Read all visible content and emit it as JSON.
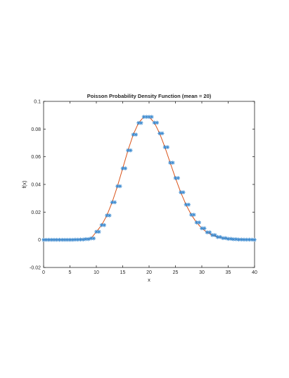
{
  "chart_data": {
    "type": "scatter",
    "title": "Poisson Probability Density Function (mean = 20)",
    "xlabel": "x",
    "ylabel": "f(x)",
    "xlim": [
      0,
      40
    ],
    "ylim": [
      -0.02,
      0.1
    ],
    "grid": false,
    "legend": "none",
    "x_ticks": [
      {
        "value": 0,
        "label": "0"
      },
      {
        "value": 5,
        "label": "5"
      },
      {
        "value": 10,
        "label": "10"
      },
      {
        "value": 15,
        "label": "15"
      },
      {
        "value": 20,
        "label": "20"
      },
      {
        "value": 25,
        "label": "25"
      },
      {
        "value": 30,
        "label": "30"
      },
      {
        "value": 35,
        "label": "35"
      },
      {
        "value": 40,
        "label": "40"
      }
    ],
    "y_ticks": [
      {
        "value": -0.02,
        "label": "-0.02"
      },
      {
        "value": 0,
        "label": "0"
      },
      {
        "value": 0.02,
        "label": "0.02"
      },
      {
        "value": 0.04,
        "label": "0.04"
      },
      {
        "value": 0.06,
        "label": "0.06"
      },
      {
        "value": 0.08,
        "label": "0.08"
      },
      {
        "value": 0.1,
        "label": "0.1"
      }
    ],
    "series": [
      {
        "kind": "markers",
        "marker": "asterisk",
        "color": "#3b8ad0",
        "x": [
          0,
          0.5,
          1,
          1.5,
          2,
          2.5,
          3,
          3.5,
          4,
          4.5,
          5,
          5.5,
          6,
          6.5,
          7,
          7.5,
          8,
          8.5,
          9,
          9.5,
          10,
          10.5,
          11,
          11.5,
          12,
          12.5,
          13,
          13.5,
          14,
          14.5,
          15,
          15.5,
          16,
          16.5,
          17,
          17.5,
          18,
          18.5,
          19,
          19.5,
          20,
          20.5,
          21,
          21.5,
          22,
          22.5,
          23,
          23.5,
          24,
          24.5,
          25,
          25.5,
          26,
          26.5,
          27,
          27.5,
          28,
          28.5,
          29,
          29.5,
          30,
          30.5,
          31,
          31.5,
          32,
          32.5,
          33,
          33.5,
          34,
          34.5,
          35,
          35.5,
          36,
          36.5,
          37,
          37.5,
          38,
          38.5,
          39,
          39.5,
          40
        ],
        "y": [
          0,
          0,
          0,
          0,
          0,
          0,
          0,
          0,
          0,
          0,
          0,
          0,
          0.0001,
          0.0001,
          0.0002,
          0.0002,
          0.0005,
          0.0005,
          0.001,
          0.001,
          0.0058,
          0.0058,
          0.0106,
          0.0106,
          0.0176,
          0.0176,
          0.0271,
          0.0271,
          0.0387,
          0.0387,
          0.0516,
          0.0516,
          0.0646,
          0.0646,
          0.076,
          0.076,
          0.0844,
          0.0844,
          0.0888,
          0.0888,
          0.0888,
          0.0888,
          0.0846,
          0.0846,
          0.0769,
          0.0769,
          0.0669,
          0.0669,
          0.0557,
          0.0557,
          0.0446,
          0.0446,
          0.0343,
          0.0343,
          0.0254,
          0.0254,
          0.0181,
          0.0181,
          0.0125,
          0.0125,
          0.0083,
          0.0083,
          0.0054,
          0.0054,
          0.0034,
          0.0034,
          0.002,
          0.002,
          0.0012,
          0.0012,
          0.0007,
          0.0007,
          0.0004,
          0.0004,
          0.0002,
          0.0002,
          0.0001,
          0.0001,
          0.0001,
          0.0001,
          0
        ]
      },
      {
        "kind": "line",
        "color": "#d95319",
        "x": [
          0,
          1,
          2,
          3,
          4,
          5,
          6,
          7,
          8,
          9,
          10,
          11,
          12,
          13,
          14,
          15,
          16,
          17,
          18,
          19,
          20,
          21,
          22,
          23,
          24,
          25,
          26,
          27,
          28,
          29,
          30,
          31,
          32,
          33,
          34,
          35,
          36,
          37,
          38,
          39,
          40
        ],
        "y": [
          0,
          0,
          0,
          0,
          0,
          0,
          0.0001,
          0.0002,
          0.0005,
          0.001,
          0.0058,
          0.0106,
          0.0176,
          0.0271,
          0.0387,
          0.0516,
          0.0646,
          0.076,
          0.0844,
          0.0888,
          0.0888,
          0.0846,
          0.0769,
          0.0669,
          0.0557,
          0.0446,
          0.0343,
          0.0254,
          0.0181,
          0.0125,
          0.0083,
          0.0054,
          0.0034,
          0.002,
          0.0012,
          0.0007,
          0.0004,
          0.0002,
          0.0001,
          0.0001,
          0
        ]
      }
    ]
  }
}
